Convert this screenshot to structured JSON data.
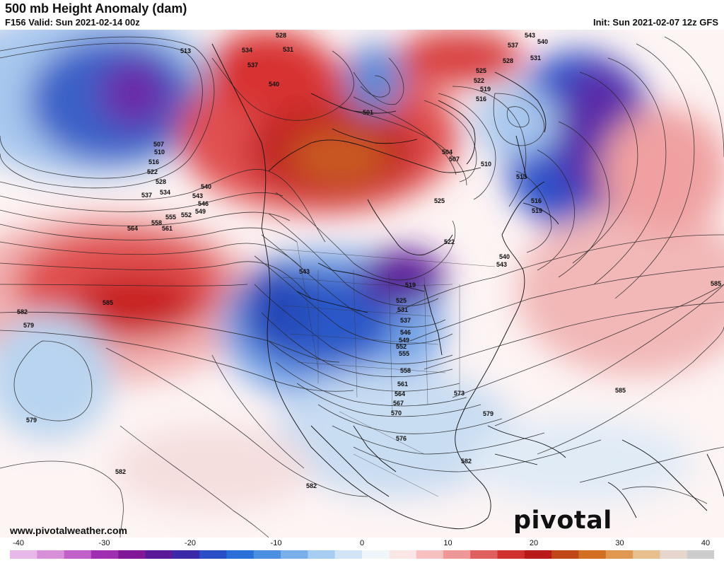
{
  "header": {
    "title": "500 mb Height Anomaly (dam)",
    "valid": "F156 Valid: Sun 2021-02-14 00z",
    "init": "Init: Sun 2021-02-07 12z GFS"
  },
  "footer": {
    "website": "www.pivotalweather.com",
    "brand": "pivotal weather"
  },
  "colorbar": {
    "ticks": [
      "-40",
      "-30",
      "-20",
      "-10",
      "0",
      "10",
      "20",
      "30",
      "40"
    ],
    "colors": [
      "#e8b8e8",
      "#d890d8",
      "#c060c8",
      "#a030b0",
      "#801898",
      "#5a1a98",
      "#3a2aa8",
      "#2a50c8",
      "#2a6fd8",
      "#4a8fe0",
      "#7ab0ea",
      "#a8cdf2",
      "#d2e4f6",
      "#f0f5fa",
      "#fbe6e6",
      "#f6c0c0",
      "#ee9898",
      "#e06060",
      "#d03030",
      "#b81818",
      "#c04818",
      "#d07020",
      "#e09850",
      "#e8c090",
      "#e6d6cc",
      "#cccccc"
    ]
  },
  "contour_labels": [
    "513",
    "534",
    "528",
    "531",
    "537",
    "540",
    "507",
    "510",
    "516",
    "522",
    "528",
    "537",
    "534",
    "540",
    "543",
    "546",
    "549",
    "552",
    "555",
    "558",
    "561",
    "564",
    "585",
    "582",
    "579",
    "543",
    "519",
    "525",
    "531",
    "537",
    "546",
    "549",
    "552",
    "555",
    "558",
    "561",
    "564",
    "567",
    "570",
    "573",
    "576",
    "579",
    "582",
    "585",
    "501",
    "504",
    "507",
    "510",
    "513",
    "516",
    "519",
    "522",
    "525",
    "519",
    "516",
    "540",
    "543",
    "528",
    "531",
    "537",
    "543",
    "540",
    "522",
    "525",
    "585",
    "582",
    "579",
    "582"
  ]
}
